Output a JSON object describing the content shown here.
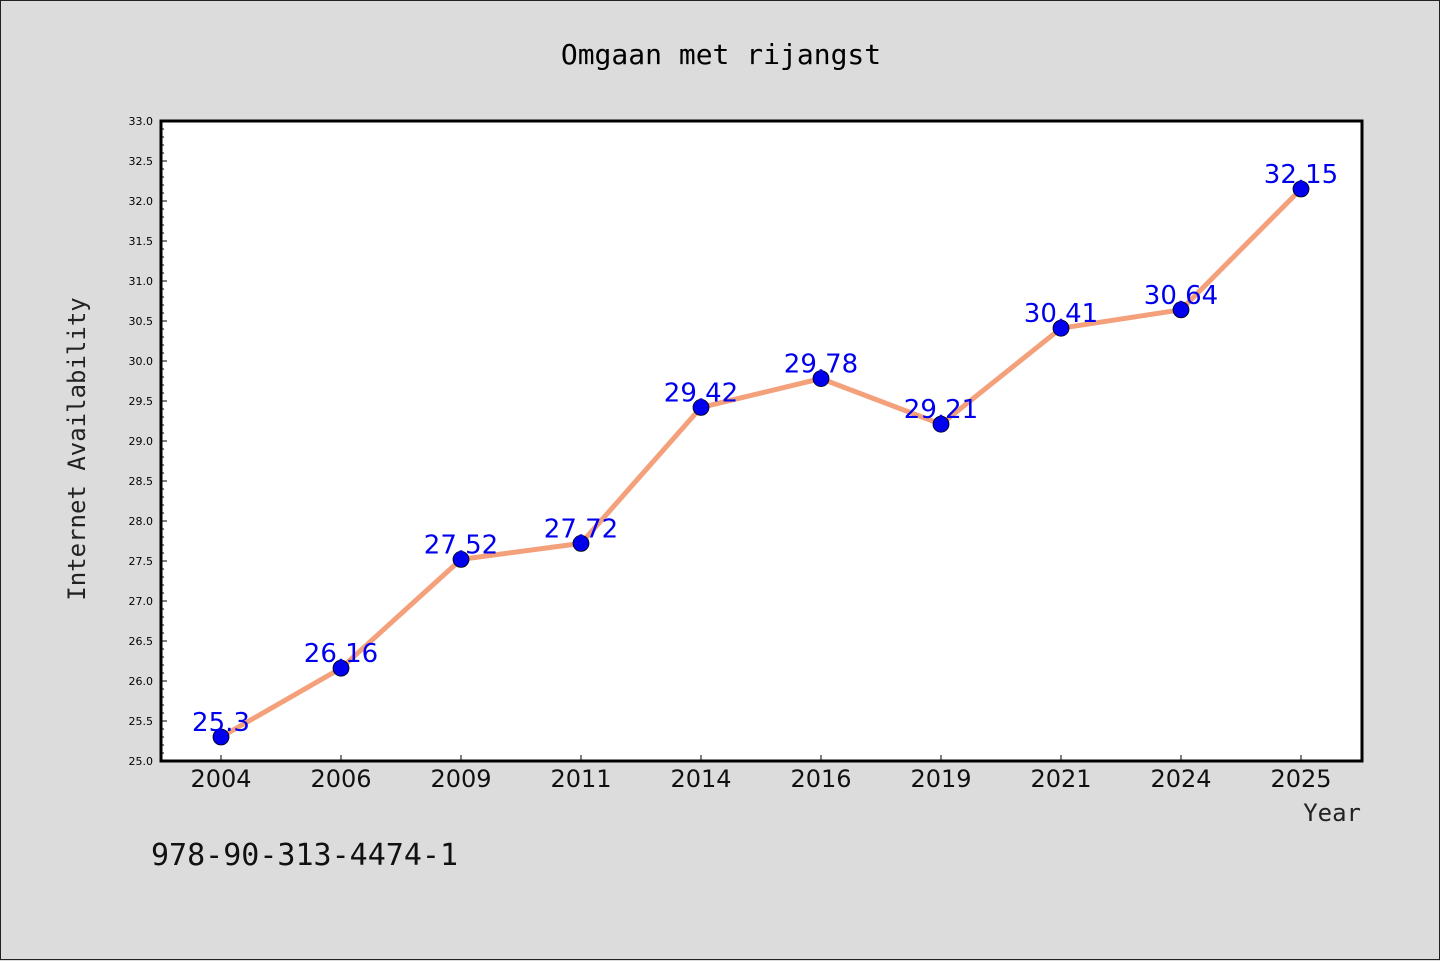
{
  "chart_data": {
    "type": "line",
    "title": "Omgaan met rijangst",
    "xlabel": "Year",
    "ylabel": "Internet Availability",
    "categories": [
      "2004",
      "2006",
      "2009",
      "2011",
      "2014",
      "2016",
      "2019",
      "2021",
      "2024",
      "2025"
    ],
    "series": [
      {
        "values": [
          25.3,
          26.16,
          27.52,
          27.72,
          29.42,
          29.78,
          29.21,
          30.41,
          30.64,
          32.15
        ],
        "data_labels": [
          "25.3",
          "26.16",
          "27.52",
          "27.72",
          "29.42",
          "29.78",
          "29.21",
          "30.41",
          "30.64",
          "32.15"
        ],
        "line_color": "#f4a07a",
        "marker_color": "#0000ee"
      }
    ],
    "ylim": [
      25.0,
      33.0
    ],
    "yticks": [
      "25.0",
      "25.5",
      "26.0",
      "26.5",
      "27.0",
      "27.5",
      "28.0",
      "28.5",
      "29.0",
      "29.5",
      "30.0",
      "30.5",
      "31.0",
      "31.5",
      "32.0",
      "32.5",
      "33.0"
    ],
    "grid": false,
    "legend": "none"
  },
  "footnote": "978-90-313-4474-1",
  "colors": {
    "background": "#dcdcdc",
    "plot_background": "#ffffff",
    "line": "#f4a07a",
    "marker": "#0000ee",
    "data_label": "#0000ee"
  }
}
